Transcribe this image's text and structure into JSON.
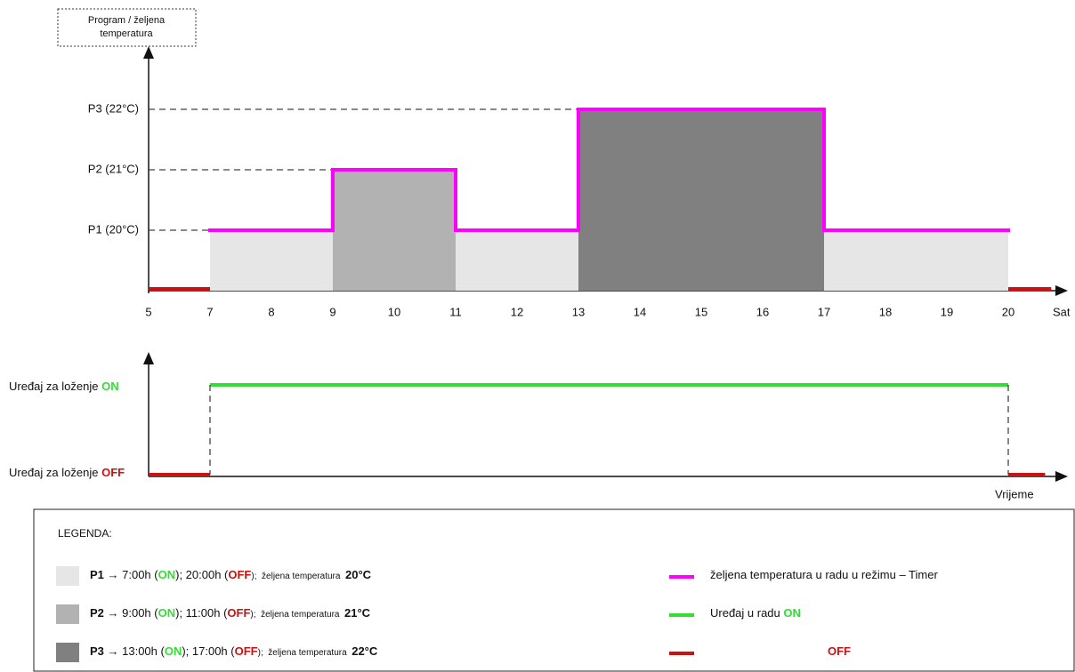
{
  "chart_data": {
    "type": "step",
    "axis_title": [
      "Program / željena",
      "temperatura"
    ],
    "x_label": "Sat",
    "xticks": [
      5,
      7,
      8,
      9,
      10,
      11,
      12,
      13,
      14,
      15,
      16,
      17,
      18,
      19,
      20
    ],
    "ylim": [
      19,
      23
    ],
    "yticks": [
      {
        "value": 20,
        "label": "P1 (20°C)"
      },
      {
        "value": 21,
        "label": "P2 (21°C)"
      },
      {
        "value": 22,
        "label": "P3 (22°C)"
      }
    ],
    "segments": [
      {
        "start": 7,
        "end": 9,
        "temp": 20,
        "color": "#e6e6e6"
      },
      {
        "start": 9,
        "end": 11,
        "temp": 21,
        "color": "#b2b2b2"
      },
      {
        "start": 11,
        "end": 13,
        "temp": 20,
        "color": "#e6e6e6"
      },
      {
        "start": 13,
        "end": 17,
        "temp": 22,
        "color": "#808080"
      },
      {
        "start": 17,
        "end": 20,
        "temp": 20,
        "color": "#e6e6e6"
      }
    ],
    "line_color": "#ff00ff",
    "on_color": "#33dd33",
    "off_color": "#cc1111",
    "off_periods": [
      [
        5,
        7
      ],
      [
        20,
        20.7
      ]
    ],
    "device": {
      "on_label": "Uređaj za loženje",
      "on_state": "ON",
      "off_label": "Uređaj za loženje",
      "off_state": "OFF",
      "x_label": "Vrijeme",
      "on_start": 7,
      "on_end": 20,
      "off_periods": [
        [
          5,
          7
        ],
        [
          20,
          20.6
        ]
      ]
    }
  },
  "legend": {
    "title": "LEGENDA:",
    "programs": [
      {
        "color": "#e6e6e6",
        "parts": [
          {
            "text": "P1",
            "style": "bold"
          },
          {
            "text": " → 7:00h ("
          },
          {
            "text": "ON",
            "style": "on"
          },
          {
            "text": "); 20:00h ("
          },
          {
            "text": "OFF",
            "style": "off"
          },
          {
            "text": ");  željena temperatura  ",
            "style": "small"
          },
          {
            "text": "20°C",
            "style": "bold"
          }
        ]
      },
      {
        "color": "#b2b2b2",
        "parts": [
          {
            "text": "P2",
            "style": "bold"
          },
          {
            "text": " → 9:00h ("
          },
          {
            "text": "ON",
            "style": "on"
          },
          {
            "text": "); 11:00h ("
          },
          {
            "text": "OFF",
            "style": "off"
          },
          {
            "text": ");  željena temperatura  ",
            "style": "small"
          },
          {
            "text": "21°C",
            "style": "bold"
          }
        ]
      },
      {
        "color": "#808080",
        "parts": [
          {
            "text": "P3",
            "style": "bold"
          },
          {
            "text": " → 13:00h ("
          },
          {
            "text": "ON",
            "style": "on"
          },
          {
            "text": "); 17:00h ("
          },
          {
            "text": "OFF",
            "style": "off"
          },
          {
            "text": ");  željena temperatura  ",
            "style": "small"
          },
          {
            "text": "22°C",
            "style": "bold"
          }
        ]
      }
    ],
    "lines": [
      {
        "color": "#ff00ff",
        "parts": [
          {
            "text": "željena temperatura u radu u režimu – Timer"
          }
        ]
      },
      {
        "color": "#33dd33",
        "parts": [
          {
            "text": "Uređaj u radu "
          },
          {
            "text": "ON",
            "style": "on"
          }
        ]
      },
      {
        "color": "#cc1111",
        "parts": [
          {
            "text": "OFF",
            "style": "off"
          }
        ]
      }
    ]
  }
}
